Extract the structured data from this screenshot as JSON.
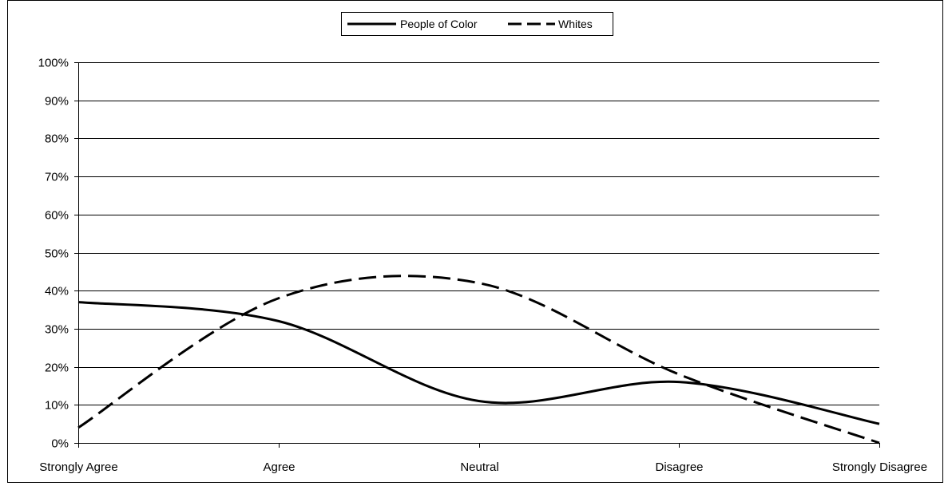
{
  "chart_data": {
    "type": "line",
    "title": "",
    "xlabel": "",
    "ylabel": "",
    "categories": [
      "Strongly Agree",
      "Agree",
      "Neutral",
      "Disagree",
      "Strongly Disagree"
    ],
    "ylim": [
      0,
      100
    ],
    "y_ticks": [
      "0%",
      "10%",
      "20%",
      "30%",
      "40%",
      "50%",
      "60%",
      "70%",
      "80%",
      "90%",
      "100%"
    ],
    "grid": true,
    "legend_position": "top-center",
    "series": [
      {
        "name": "People of Color",
        "values": [
          37,
          32,
          11,
          16,
          5
        ],
        "style": "solid",
        "color": "#000000"
      },
      {
        "name": "Whites",
        "values": [
          4,
          38,
          42,
          18,
          0
        ],
        "style": "dashed",
        "color": "#000000"
      }
    ]
  }
}
